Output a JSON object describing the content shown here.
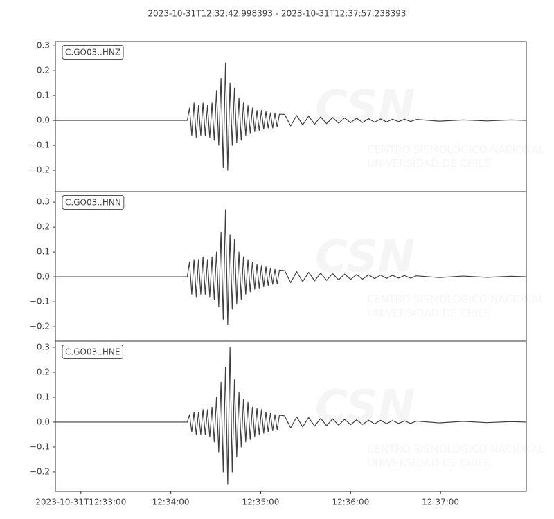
{
  "title": "2023-10-31T12:32:42.998393  -  2023-10-31T12:37:57.238393",
  "watermark": {
    "logo": "CSN",
    "line1": "CENTRO SISMOLÓGICO NACIONAL",
    "line2": "UNIVERSIDAD DE CHILE"
  },
  "chart_data": [
    {
      "type": "line",
      "label": "C.GO03..HNZ",
      "color": "#3f3f3f",
      "xlim": [
        0,
        314.24
      ],
      "ylim": [
        -0.286,
        0.317
      ],
      "yticks": [
        {
          "value": -0.2,
          "label": "−0.2"
        },
        {
          "value": -0.1,
          "label": "−0.1"
        },
        {
          "value": 0,
          "label": "0.0"
        },
        0.1,
        0.2,
        0.3
      ],
      "x": [
        0,
        88,
        89.5,
        91,
        92.5,
        94,
        95.5,
        97,
        98.5,
        100,
        101.5,
        103,
        104.5,
        106,
        107.5,
        109,
        110.5,
        112,
        113.5,
        115,
        116.5,
        118,
        119.5,
        121,
        122.5,
        124,
        125.5,
        127,
        128.5,
        130,
        131.5,
        133,
        134.5,
        136,
        137.5,
        139,
        140.5,
        142,
        143.5,
        145,
        146.5,
        148,
        149.5,
        153,
        157,
        161,
        165,
        169,
        173,
        177,
        181,
        185,
        189,
        193,
        197,
        201,
        205,
        209,
        213,
        217,
        221,
        225,
        229,
        233,
        237,
        241,
        256,
        272,
        288,
        304,
        314.2
      ],
      "values": [
        0,
        0,
        0.05,
        -0.06,
        0.07,
        -0.07,
        0.06,
        -0.06,
        0.07,
        -0.06,
        0.06,
        -0.07,
        0.07,
        -0.08,
        0.12,
        -0.1,
        0.17,
        -0.19,
        0.23,
        -0.2,
        0.15,
        -0.1,
        0.13,
        -0.09,
        0.09,
        -0.08,
        0.07,
        -0.06,
        0.06,
        -0.05,
        0.05,
        -0.045,
        0.04,
        -0.04,
        0.04,
        -0.035,
        0.035,
        -0.03,
        0.03,
        -0.03,
        0.028,
        -0.026,
        0.025,
        0.024,
        -0.022,
        0.02,
        -0.018,
        0.017,
        -0.015,
        0.014,
        -0.013,
        0.012,
        -0.011,
        0.01,
        -0.009,
        0.009,
        -0.008,
        0.007,
        -0.007,
        0.006,
        -0.006,
        0.005,
        -0.005,
        0.005,
        -0.004,
        0.004,
        -0.003,
        0.002,
        -0.002,
        0.002,
        0
      ]
    },
    {
      "type": "line",
      "label": "C.GO03..HNN",
      "color": "#3f3f3f",
      "xlim": [
        0,
        314.24
      ],
      "ylim": [
        -0.258,
        0.342
      ],
      "yticks": [
        {
          "value": -0.2,
          "label": "−0.2"
        },
        {
          "value": -0.1,
          "label": "−0.1"
        },
        {
          "value": 0,
          "label": "0.0"
        },
        0.1,
        0.2,
        0.3
      ],
      "x": [
        0,
        88,
        89.5,
        91,
        92.5,
        94,
        95.5,
        97,
        98.5,
        100,
        101.5,
        103,
        104.5,
        106,
        107.5,
        109,
        110.5,
        112,
        113.5,
        115,
        116.5,
        118,
        119.5,
        121,
        122.5,
        124,
        125.5,
        127,
        128.5,
        130,
        131.5,
        133,
        134.5,
        136,
        137.5,
        139,
        140.5,
        142,
        143.5,
        145,
        146.5,
        148,
        149.5,
        153,
        157,
        161,
        165,
        169,
        173,
        177,
        181,
        185,
        189,
        193,
        197,
        201,
        205,
        209,
        213,
        217,
        221,
        225,
        229,
        233,
        237,
        241,
        256,
        272,
        288,
        304,
        314.2
      ],
      "values": [
        0,
        0,
        0.06,
        -0.07,
        0.07,
        -0.08,
        0.07,
        -0.07,
        0.08,
        -0.07,
        0.07,
        -0.08,
        0.08,
        -0.09,
        0.1,
        -0.12,
        0.18,
        -0.17,
        0.27,
        -0.19,
        0.17,
        -0.13,
        0.15,
        -0.11,
        0.1,
        -0.09,
        0.08,
        -0.07,
        0.07,
        -0.06,
        0.06,
        -0.05,
        0.05,
        -0.045,
        0.045,
        -0.04,
        0.04,
        -0.035,
        0.035,
        -0.03,
        0.03,
        -0.028,
        0.027,
        0.025,
        -0.023,
        0.021,
        -0.019,
        0.018,
        -0.016,
        0.015,
        -0.014,
        0.013,
        -0.012,
        0.011,
        -0.01,
        0.009,
        -0.009,
        0.008,
        -0.007,
        0.007,
        -0.006,
        0.006,
        -0.005,
        0.005,
        -0.005,
        0.004,
        -0.003,
        0.003,
        -0.002,
        0.002,
        0
      ]
    },
    {
      "type": "line",
      "label": "C.GO03..HNE",
      "color": "#3f3f3f",
      "xlim": [
        0,
        314.24
      ],
      "ylim": [
        -0.278,
        0.325
      ],
      "yticks": [
        {
          "value": -0.2,
          "label": "−0.2"
        },
        {
          "value": -0.1,
          "label": "−0.1"
        },
        {
          "value": 0,
          "label": "0.0"
        },
        0.1,
        0.2,
        0.3
      ],
      "xticks": [
        {
          "value": 17.0,
          "label": "2023-10-31T12:33:00"
        },
        {
          "value": 77.0,
          "label": "12:34:00"
        },
        {
          "value": 137.0,
          "label": "12:35:00"
        },
        {
          "value": 197.0,
          "label": "12:36:00"
        },
        {
          "value": 257.0,
          "label": "12:37:00"
        }
      ],
      "x": [
        0,
        88,
        89.5,
        91,
        92.5,
        94,
        95.5,
        97,
        98.5,
        100,
        101.5,
        103,
        104.5,
        106,
        107.5,
        109,
        110.5,
        112,
        113.5,
        115,
        116.5,
        118,
        119.5,
        121,
        122.5,
        124,
        125.5,
        127,
        128.5,
        130,
        131.5,
        133,
        134.5,
        136,
        137.5,
        139,
        140.5,
        142,
        143.5,
        145,
        146.5,
        148,
        149.5,
        153,
        157,
        161,
        165,
        169,
        173,
        177,
        181,
        185,
        189,
        193,
        197,
        201,
        205,
        209,
        213,
        217,
        221,
        225,
        229,
        233,
        237,
        241,
        256,
        272,
        288,
        304,
        314.2
      ],
      "values": [
        0,
        0,
        0.03,
        -0.04,
        0.04,
        -0.05,
        0.04,
        -0.05,
        0.05,
        -0.05,
        0.05,
        -0.06,
        0.06,
        -0.08,
        0.1,
        -0.12,
        0.16,
        -0.2,
        0.22,
        -0.25,
        0.3,
        -0.2,
        0.17,
        -0.14,
        0.12,
        -0.1,
        0.09,
        -0.08,
        0.08,
        -0.07,
        0.06,
        -0.06,
        0.055,
        -0.05,
        0.05,
        -0.045,
        0.04,
        -0.04,
        0.035,
        -0.035,
        0.03,
        -0.03,
        0.028,
        0.025,
        -0.023,
        0.021,
        -0.019,
        0.018,
        -0.016,
        0.015,
        -0.014,
        0.013,
        -0.012,
        0.011,
        -0.01,
        0.009,
        -0.009,
        0.008,
        -0.007,
        0.007,
        -0.006,
        0.006,
        -0.005,
        0.005,
        -0.005,
        0.004,
        -0.003,
        0.003,
        -0.002,
        0.002,
        0
      ]
    }
  ]
}
